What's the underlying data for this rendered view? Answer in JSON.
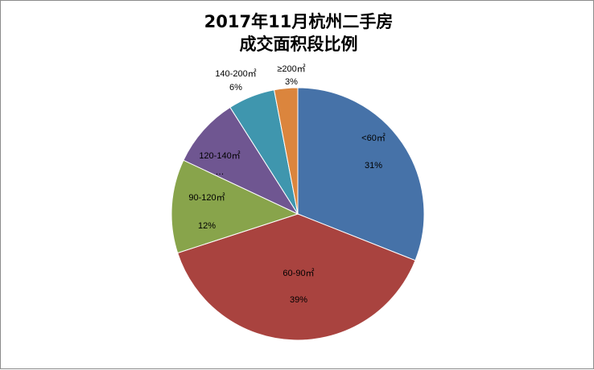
{
  "chart_data": {
    "type": "pie",
    "title_lines": [
      "2017年11月杭州二手房",
      "成交面积段比例"
    ],
    "slices": [
      {
        "label": "<60㎡",
        "value": 31,
        "value_text": "31%",
        "color": "#4672A8"
      },
      {
        "label": "60-90㎡",
        "value": 39,
        "value_text": "39%",
        "color": "#A9433F"
      },
      {
        "label": "90-120㎡",
        "value": 12,
        "value_text": "12%",
        "color": "#88A44B"
      },
      {
        "label": "120-140㎡",
        "value": 9,
        "value_text": "…",
        "color": "#6F5691"
      },
      {
        "label": "140-200㎡",
        "value": 6,
        "value_text": "6%",
        "color": "#3F96AE"
      },
      {
        "label": "≥200㎡",
        "value": 3,
        "value_text": "3%",
        "color": "#DB853D"
      }
    ],
    "legend": "none"
  }
}
